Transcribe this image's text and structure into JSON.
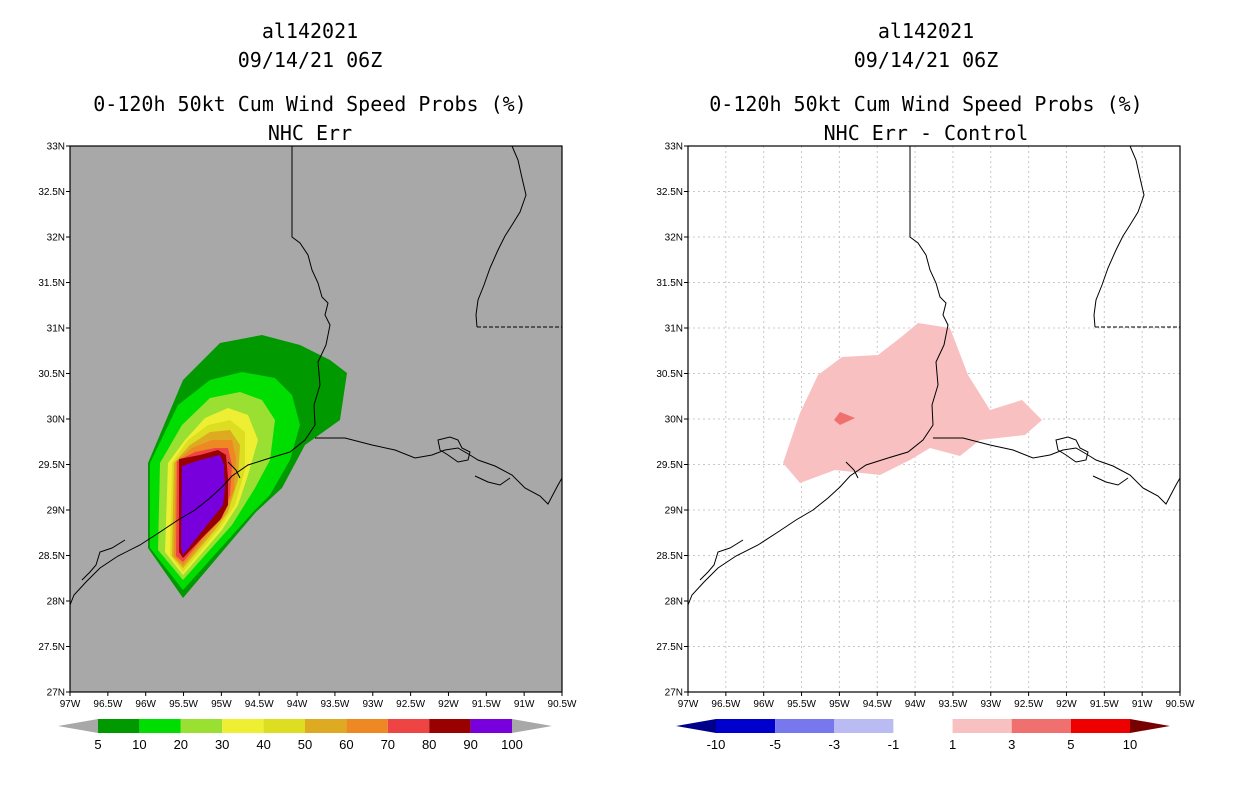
{
  "panels": [
    {
      "storm_id": "al142021",
      "datetime": "09/14/21 06Z",
      "title": "0-120h 50kt Cum Wind Speed Probs (%)",
      "subtitle": "NHC Err",
      "background": "#a8a8a8",
      "colorbar": {
        "labels": [
          "5",
          "10",
          "20",
          "30",
          "40",
          "50",
          "60",
          "70",
          "80",
          "90",
          "100"
        ],
        "colors": [
          "#009900",
          "#00dd00",
          "#99e033",
          "#eeee33",
          "#dddd22",
          "#ddaa22",
          "#ee8822",
          "#ee4444",
          "#990000",
          "#7700dd"
        ],
        "end_colors": [
          "#a8a8a8",
          "#a8a8a8"
        ]
      }
    },
    {
      "storm_id": "al142021",
      "datetime": "09/14/21 06Z",
      "title": "0-120h 50kt Cum Wind Speed Probs (%)",
      "subtitle": "NHC Err - Control",
      "background": "#ffffff",
      "colorbar": {
        "labels": [
          "-10",
          "-5",
          "-3",
          "-1",
          "1",
          "3",
          "5",
          "10"
        ],
        "colors": [
          "#0000cc",
          "#7777ee",
          "#bbbbf4",
          "#ffffff",
          "#f8c0c0",
          "#f07070",
          "#ee0000"
        ],
        "end_colors": [
          "#00008b",
          "#770000"
        ]
      }
    }
  ],
  "axes": {
    "lat_labels": [
      "33N",
      "32.5N",
      "32N",
      "31.5N",
      "31N",
      "30.5N",
      "30N",
      "29.5N",
      "29N",
      "28.5N",
      "28N",
      "27.5N",
      "27N"
    ],
    "lon_labels": [
      "97W",
      "96.5W",
      "96W",
      "95.5W",
      "95W",
      "94.5W",
      "94W",
      "93.5W",
      "93W",
      "92.5W",
      "92W",
      "91.5W",
      "91W",
      "90.5W"
    ]
  }
}
